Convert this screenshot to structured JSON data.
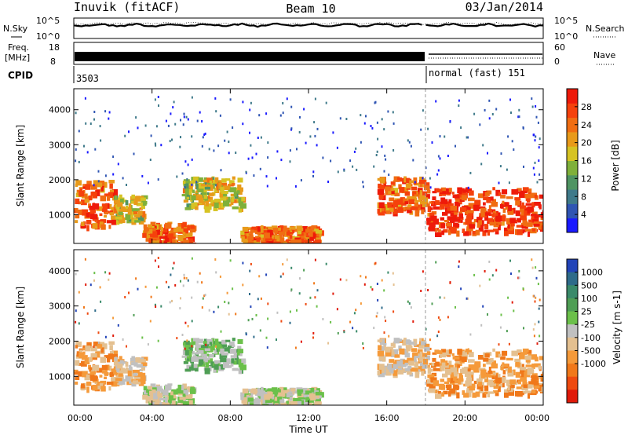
{
  "header": {
    "left": "Inuvik (fitACF)",
    "center": "Beam 10",
    "right": "03/Jan/2014"
  },
  "noise_panel": {
    "left_label": "N.Sky",
    "right_label": "N.Search",
    "left_ticks": [
      "10^5",
      "10^0"
    ],
    "right_ticks": [
      "10^5",
      "10^0"
    ]
  },
  "freq_panel": {
    "left_label_line1": "Freq.",
    "left_label_line2": "[MHz]",
    "left_ticks": [
      "18",
      "8"
    ],
    "right_label": "Nave",
    "right_ticks": [
      "60",
      "0"
    ]
  },
  "cpid_panel": {
    "label": "CPID",
    "segments": [
      {
        "text": "3503",
        "start_hour": 0.0
      },
      {
        "text": "normal (fast) 151",
        "start_hour": 18.0
      }
    ]
  },
  "power_panel": {
    "ylabel": "Slant Range [km]",
    "yticks": [
      "1000",
      "2000",
      "3000",
      "4000"
    ],
    "colorbar_label": "Power [dB]",
    "colorbar_ticks": [
      "4",
      "8",
      "12",
      "16",
      "20",
      "24",
      "28"
    ],
    "colorbar_colors": [
      "#1a1aff",
      "#2f55b3",
      "#3f7a8a",
      "#4f9462",
      "#7fb03a",
      "#d6c323",
      "#e89a1a",
      "#f06d12",
      "#f5410c",
      "#ee1a0a"
    ]
  },
  "velocity_panel": {
    "ylabel": "Slant Range [km]",
    "yticks": [
      "1000",
      "2000",
      "3000",
      "4000"
    ],
    "colorbar_label": "Velocity [m s-1]",
    "colorbar_ticks": [
      "1000",
      "500",
      "100",
      "25",
      "-25",
      "-100",
      "-500",
      "-1000"
    ],
    "colorbar_colors": [
      "#2244b8",
      "#2e6b8a",
      "#3a8a6a",
      "#4f9e55",
      "#6bc04a",
      "#c0c0c0",
      "#e4c090",
      "#f59a3a",
      "#f0781a",
      "#ee4a10",
      "#e01a0a"
    ]
  },
  "xaxis": {
    "label": "Time UT",
    "ticks": [
      "00:00",
      "04:00",
      "08:00",
      "12:00",
      "16:00",
      "20:00",
      "00:00"
    ]
  },
  "chart_data": {
    "type": "heatmap",
    "title": "Inuvik (fitACF)   Beam 10   03/Jan/2014",
    "x_axis": "Time UT",
    "x_range_hours": [
      0,
      24
    ],
    "y_axis": "Slant Range [km]",
    "y_range_km": [
      180,
      4600
    ],
    "power_range_db": [
      0,
      32
    ],
    "velocity_range_ms": [
      -1000,
      1000
    ],
    "cpid": [
      {
        "start": "00:00",
        "end": "18:00",
        "value": "3503"
      },
      {
        "start": "18:00",
        "end": "00:00",
        "value": "normal (fast) 151"
      }
    ],
    "echo_regions": [
      {
        "t0": 0.0,
        "t1": 2.0,
        "r0": 700,
        "r1": 2000,
        "power": "high",
        "velocity": "-300"
      },
      {
        "t0": 2.0,
        "t1": 3.5,
        "r0": 800,
        "r1": 1600,
        "power": "medium",
        "velocity": "-100"
      },
      {
        "t0": 3.5,
        "t1": 6.0,
        "r0": 200,
        "r1": 800,
        "power": "high",
        "velocity": "0"
      },
      {
        "t0": 5.5,
        "t1": 8.5,
        "r0": 1200,
        "r1": 2100,
        "power": "medium",
        "velocity": "+200"
      },
      {
        "t0": 8.5,
        "t1": 12.5,
        "r0": 200,
        "r1": 700,
        "power": "high",
        "velocity": "+50"
      },
      {
        "t0": 15.5,
        "t1": 18.0,
        "r0": 1100,
        "r1": 2100,
        "power": "high",
        "velocity": "-200"
      },
      {
        "t0": 18.0,
        "t1": 24.0,
        "r0": 500,
        "r1": 1800,
        "power": "very high",
        "velocity": "-300"
      }
    ]
  }
}
